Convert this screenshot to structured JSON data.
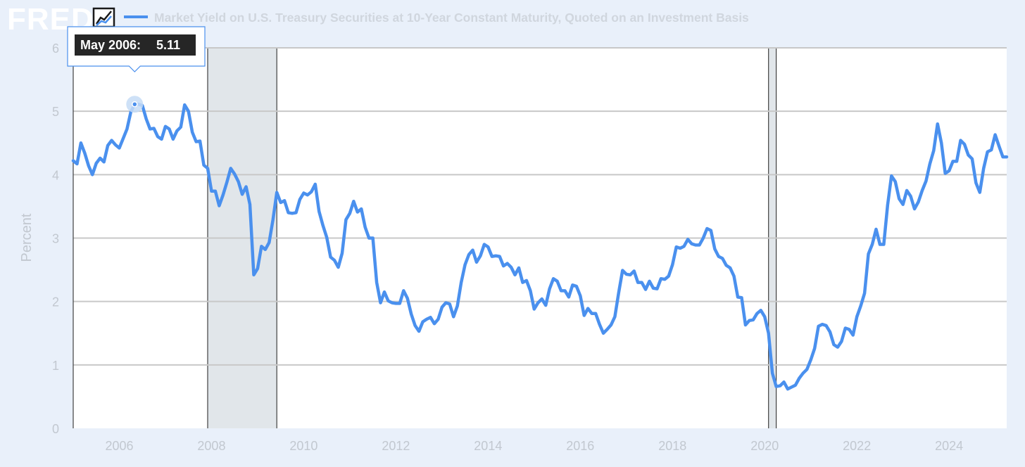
{
  "brand": {
    "logo_text": "FRED"
  },
  "chart_data": {
    "type": "line",
    "title": "Market Yield on U.S. Treasury Securities at 10-Year Constant Maturity, Quoted on an Investment Basis",
    "ylabel": "Percent",
    "xlabel": "",
    "xlim": [
      "2005-01",
      "2025-04"
    ],
    "ylim": [
      0,
      6
    ],
    "yticks": [
      "0",
      "1",
      "2",
      "3",
      "4",
      "5",
      "6"
    ],
    "xticks": [
      "2006",
      "2008",
      "2010",
      "2012",
      "2014",
      "2016",
      "2018",
      "2020",
      "2022",
      "2024"
    ],
    "grid": true,
    "series_color": "#4a90ee",
    "recessions": [
      {
        "start": "2007-12",
        "end": "2009-06"
      },
      {
        "start": "2020-02",
        "end": "2020-04"
      }
    ],
    "tooltip": {
      "label": "May 2006:",
      "value": "5.11",
      "date": "2006-05"
    },
    "series": [
      {
        "name": "Market Yield on U.S. Treasury Securities at 10-Year Constant Maturity, Quoted on an Investment Basis",
        "start": "2005-01",
        "values": [
          4.22,
          4.17,
          4.5,
          4.34,
          4.14,
          4.0,
          4.18,
          4.26,
          4.2,
          4.46,
          4.54,
          4.47,
          4.42,
          4.57,
          4.72,
          4.99,
          5.11,
          5.11,
          5.09,
          4.88,
          4.72,
          4.73,
          4.6,
          4.56,
          4.76,
          4.72,
          4.56,
          4.69,
          4.75,
          5.1,
          5.0,
          4.67,
          4.52,
          4.53,
          4.15,
          4.1,
          3.74,
          3.74,
          3.51,
          3.68,
          3.88,
          4.1,
          4.01,
          3.89,
          3.69,
          3.81,
          3.53,
          2.42,
          2.52,
          2.87,
          2.82,
          2.93,
          3.29,
          3.72,
          3.56,
          3.59,
          3.4,
          3.39,
          3.4,
          3.61,
          3.71,
          3.68,
          3.73,
          3.85,
          3.42,
          3.2,
          3.01,
          2.7,
          2.65,
          2.54,
          2.76,
          3.29,
          3.39,
          3.58,
          3.41,
          3.46,
          3.17,
          3.0,
          3.0,
          2.3,
          1.98,
          2.15,
          2.01,
          1.98,
          1.97,
          1.97,
          2.17,
          2.05,
          1.8,
          1.62,
          1.53,
          1.68,
          1.72,
          1.75,
          1.65,
          1.72,
          1.91,
          1.98,
          1.96,
          1.76,
          1.93,
          2.3,
          2.58,
          2.74,
          2.81,
          2.62,
          2.72,
          2.9,
          2.86,
          2.71,
          2.72,
          2.71,
          2.56,
          2.6,
          2.54,
          2.42,
          2.53,
          2.3,
          2.33,
          2.17,
          1.88,
          1.98,
          2.04,
          1.94,
          2.2,
          2.36,
          2.32,
          2.17,
          2.17,
          2.07,
          2.26,
          2.24,
          2.09,
          1.78,
          1.89,
          1.81,
          1.81,
          1.64,
          1.5,
          1.56,
          1.63,
          1.76,
          2.14,
          2.49,
          2.43,
          2.42,
          2.48,
          2.3,
          2.3,
          2.19,
          2.32,
          2.21,
          2.2,
          2.36,
          2.35,
          2.4,
          2.58,
          2.86,
          2.84,
          2.87,
          2.98,
          2.91,
          2.89,
          2.89,
          3.0,
          3.15,
          3.12,
          2.83,
          2.71,
          2.68,
          2.57,
          2.53,
          2.4,
          2.07,
          2.06,
          1.63,
          1.7,
          1.71,
          1.81,
          1.86,
          1.76,
          1.5,
          0.87,
          0.66,
          0.67,
          0.73,
          0.62,
          0.65,
          0.68,
          0.79,
          0.87,
          0.93,
          1.08,
          1.26,
          1.61,
          1.64,
          1.62,
          1.52,
          1.32,
          1.28,
          1.37,
          1.58,
          1.56,
          1.47,
          1.76,
          1.93,
          2.13,
          2.75,
          2.9,
          3.14,
          2.9,
          2.9,
          3.52,
          3.98,
          3.89,
          3.62,
          3.53,
          3.75,
          3.66,
          3.46,
          3.57,
          3.75,
          3.9,
          4.17,
          4.38,
          4.8,
          4.5,
          4.02,
          4.06,
          4.21,
          4.21,
          4.54,
          4.48,
          4.31,
          4.25,
          3.87,
          3.72,
          4.1,
          4.36,
          4.39,
          4.63,
          4.45,
          4.28,
          4.28
        ]
      }
    ]
  }
}
